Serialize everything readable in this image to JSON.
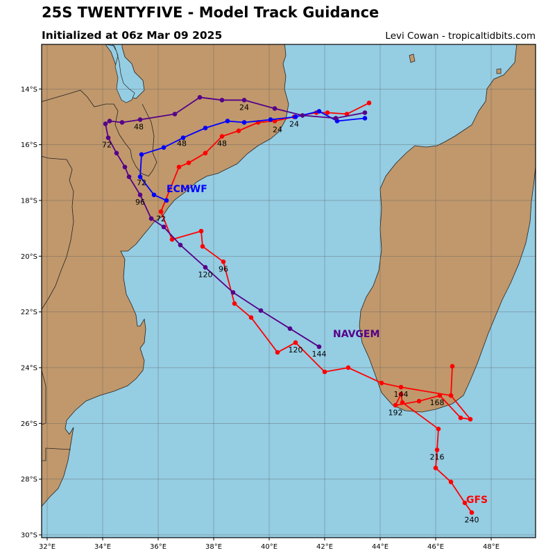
{
  "header": {
    "title": "25S TWENTYFIVE - Model Track Guidance",
    "subtitle": "Initialized at 06z Mar 09 2025",
    "credit": "Levi Cowan - tropicaltidbits.com"
  },
  "colors": {
    "ocean": "#95cde3",
    "land": "#c0986c",
    "coast": "#222222",
    "grid": "#555555"
  },
  "chart_data": {
    "type": "map-tracks",
    "lon_range": [
      31.8,
      49.6
    ],
    "lat_range": [
      -30.1,
      -12.4
    ],
    "x_ticks": [
      {
        "value": 32,
        "label": "32°E"
      },
      {
        "value": 34,
        "label": "34°E"
      },
      {
        "value": 36,
        "label": "36°E"
      },
      {
        "value": 38,
        "label": "38°E"
      },
      {
        "value": 40,
        "label": "40°E"
      },
      {
        "value": 42,
        "label": "42°E"
      },
      {
        "value": 44,
        "label": "44°E"
      },
      {
        "value": 46,
        "label": "46°E"
      },
      {
        "value": 48,
        "label": "48°E"
      }
    ],
    "y_ticks": [
      {
        "value": -14,
        "label": "14°S"
      },
      {
        "value": -16,
        "label": "16°S"
      },
      {
        "value": -18,
        "label": "18°S"
      },
      {
        "value": -20,
        "label": "20°S"
      },
      {
        "value": -22,
        "label": "22°S"
      },
      {
        "value": -24,
        "label": "24°S"
      },
      {
        "value": -26,
        "label": "26°S"
      },
      {
        "value": -28,
        "label": "28°S"
      },
      {
        "value": -30,
        "label": "30°S"
      }
    ],
    "series": [
      {
        "name": "GFS",
        "color": "#ff0000",
        "name_at": [
          47.1,
          -28.85
        ],
        "points": [
          [
            43.6,
            -14.5
          ],
          [
            42.8,
            -14.9
          ],
          [
            42.1,
            -14.85
          ],
          [
            41.7,
            -14.85
          ],
          [
            40.9,
            -15.0
          ],
          [
            40.2,
            -15.15
          ],
          [
            39.6,
            -15.2
          ],
          [
            38.9,
            -15.5
          ],
          [
            38.3,
            -15.7
          ],
          [
            37.7,
            -16.3
          ],
          [
            37.1,
            -16.65
          ],
          [
            36.75,
            -16.8
          ],
          [
            36.1,
            -18.4
          ],
          [
            36.5,
            -19.4
          ],
          [
            37.55,
            -19.1
          ],
          [
            37.6,
            -19.65
          ],
          [
            38.35,
            -20.2
          ],
          [
            38.75,
            -21.7
          ],
          [
            39.35,
            -22.2
          ],
          [
            40.3,
            -23.45
          ],
          [
            40.95,
            -23.1
          ],
          [
            42.0,
            -24.15
          ],
          [
            42.85,
            -24.0
          ],
          [
            44.05,
            -24.55
          ],
          [
            44.75,
            -24.7
          ],
          [
            46.55,
            -25.0
          ],
          [
            46.6,
            -23.95
          ],
          [
            46.55,
            -25.0
          ],
          [
            47.25,
            -25.85
          ],
          [
            46.9,
            -25.8
          ],
          [
            46.15,
            -25.0
          ],
          [
            45.4,
            -25.2
          ],
          [
            44.55,
            -25.35
          ],
          [
            44.75,
            -24.95
          ],
          [
            44.8,
            -25.25
          ],
          [
            46.1,
            -26.2
          ],
          [
            46.05,
            -26.95
          ],
          [
            46.0,
            -27.6
          ],
          [
            46.55,
            -28.1
          ],
          [
            47.05,
            -28.85
          ],
          [
            47.3,
            -29.2
          ]
        ],
        "labels": [
          {
            "text": "24",
            "at": [
              40.3,
              -15.55
            ]
          },
          {
            "text": "48",
            "at": [
              38.3,
              -16.05
            ]
          },
          {
            "text": "72",
            "at": [
              36.1,
              -18.75
            ]
          },
          {
            "text": "96",
            "at": [
              38.35,
              -20.55
            ]
          },
          {
            "text": "120",
            "at": [
              40.95,
              -23.45
            ]
          },
          {
            "text": "144",
            "at": [
              44.75,
              -25.05
            ]
          },
          {
            "text": "168",
            "at": [
              46.05,
              -25.35
            ]
          },
          {
            "text": "192",
            "at": [
              44.55,
              -25.7
            ]
          },
          {
            "text": "216",
            "at": [
              46.05,
              -27.3
            ]
          },
          {
            "text": "240",
            "at": [
              47.3,
              -29.55
            ]
          }
        ]
      },
      {
        "name": "ECMWF",
        "color": "#0000ff",
        "name_at": [
          36.3,
          -17.7
        ],
        "points": [
          [
            43.45,
            -15.05
          ],
          [
            42.45,
            -15.15
          ],
          [
            41.8,
            -14.8
          ],
          [
            40.95,
            -15.0
          ],
          [
            40.05,
            -15.1
          ],
          [
            39.1,
            -15.2
          ],
          [
            38.5,
            -15.15
          ],
          [
            37.7,
            -15.4
          ],
          [
            36.9,
            -15.75
          ],
          [
            36.2,
            -16.1
          ],
          [
            35.4,
            -16.35
          ],
          [
            35.35,
            -17.15
          ],
          [
            35.85,
            -17.8
          ],
          [
            36.3,
            -18.0
          ]
        ],
        "labels": [
          {
            "text": "24",
            "at": [
              40.9,
              -15.35
            ]
          },
          {
            "text": "48",
            "at": [
              36.85,
              -16.05
            ]
          },
          {
            "text": "72",
            "at": [
              35.4,
              -17.45
            ]
          }
        ]
      },
      {
        "name": "NAVGEM",
        "color": "#550088",
        "name_at": [
          42.3,
          -22.9
        ],
        "points": [
          [
            43.45,
            -14.85
          ],
          [
            42.4,
            -15.05
          ],
          [
            41.2,
            -14.95
          ],
          [
            40.2,
            -14.7
          ],
          [
            39.1,
            -14.4
          ],
          [
            38.3,
            -14.4
          ],
          [
            37.5,
            -14.3
          ],
          [
            36.6,
            -14.9
          ],
          [
            35.35,
            -15.1
          ],
          [
            34.7,
            -15.2
          ],
          [
            34.25,
            -15.15
          ],
          [
            34.1,
            -15.25
          ],
          [
            34.2,
            -15.75
          ],
          [
            34.5,
            -16.3
          ],
          [
            34.8,
            -16.8
          ],
          [
            34.95,
            -17.15
          ],
          [
            35.35,
            -17.8
          ],
          [
            35.75,
            -18.65
          ],
          [
            36.2,
            -18.95
          ],
          [
            36.8,
            -19.6
          ],
          [
            37.7,
            -20.4
          ],
          [
            38.7,
            -21.3
          ],
          [
            39.7,
            -21.95
          ],
          [
            40.75,
            -22.6
          ],
          [
            41.8,
            -23.25
          ]
        ],
        "labels": [
          {
            "text": "24",
            "at": [
              39.1,
              -14.75
            ]
          },
          {
            "text": "48",
            "at": [
              35.3,
              -15.45
            ]
          },
          {
            "text": "72",
            "at": [
              34.15,
              -16.1
            ]
          },
          {
            "text": "96",
            "at": [
              35.35,
              -18.15
            ]
          },
          {
            "text": "120",
            "at": [
              37.7,
              -20.75
            ]
          },
          {
            "text": "144",
            "at": [
              41.8,
              -23.6
            ]
          }
        ]
      }
    ]
  }
}
